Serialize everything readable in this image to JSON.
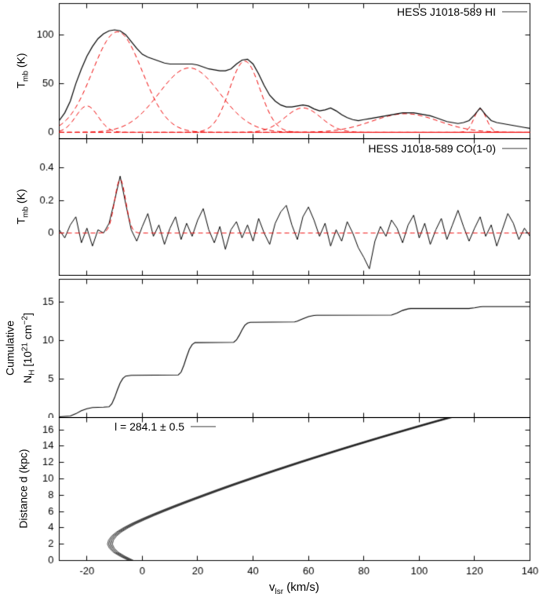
{
  "x_axis": {
    "title_main": "v",
    "title_sub": "lsr",
    "title_rest": " (km/s)",
    "range": [
      -30,
      140
    ],
    "ticks": [
      -20,
      0,
      20,
      40,
      60,
      80,
      100,
      120,
      140
    ]
  },
  "panels": {
    "hi": {
      "legend": "HESS J1018-589 HI",
      "ylabel": {
        "main": "T",
        "sub": "mb",
        "rest": " (K)"
      }
    },
    "co": {
      "legend": "HESS J1018-589 CO(1-0)",
      "ylabel": {
        "main": "T",
        "sub": "mb",
        "rest": " (K)"
      }
    },
    "nh": {
      "ylabel_line1": "Cumulative",
      "ylabel_line2": {
        "pre": "N",
        "sub": "H",
        "mid": " [10",
        "sup1": "21",
        "mid2": " cm",
        "sup2": "−2",
        "post": "]"
      }
    },
    "dist": {
      "legend": "l = 284.1 ± 0.5",
      "ylabel": "Distance d (kpc)"
    }
  },
  "colors": {
    "spectrum_line": "#000000",
    "fit_dashed": "#ee0000",
    "legend_sample": "#a0a0a0"
  },
  "chart_data": [
    {
      "type": "line",
      "title": "HESS J1018-589 HI",
      "ylabel": "T_mb (K)",
      "xlabel": "v_lsr (km/s)",
      "xlim": [
        -30,
        140
      ],
      "ylim": [
        -6.5,
        132
      ],
      "yticks": [
        0,
        50,
        100
      ],
      "observed_x_start": -30,
      "observed_x_step": 2,
      "observed_y": [
        12,
        20,
        32,
        50,
        65,
        78,
        88,
        96,
        101,
        104,
        105,
        104,
        100,
        93,
        86,
        80,
        77,
        75,
        73,
        71,
        70,
        70,
        70,
        70,
        70,
        69,
        67,
        65,
        64,
        63,
        63,
        65,
        70,
        74,
        75,
        70,
        60,
        48,
        38,
        32,
        28,
        26,
        26,
        27,
        28,
        27,
        24,
        22,
        23,
        25,
        22,
        18,
        15,
        13,
        12,
        13,
        14,
        15,
        16,
        17,
        18,
        19,
        20,
        20,
        20,
        19,
        18,
        17,
        15,
        13,
        11,
        10,
        9,
        10,
        12,
        18,
        25,
        18,
        12,
        10,
        9,
        8,
        7,
        6,
        5,
        4
      ],
      "gaussian_components": [
        [
          -20,
          27,
          4
        ],
        [
          -9,
          103,
          9
        ],
        [
          17,
          66,
          11
        ],
        [
          37,
          73,
          5.5
        ],
        [
          58,
          25,
          6.5
        ],
        [
          95,
          19,
          12
        ],
        [
          122,
          24,
          2.2
        ]
      ]
    },
    {
      "type": "line",
      "title": "HESS J1018-589 CO(1-0)",
      "ylabel": "T_mb (K)",
      "xlabel": "v_lsr (km/s)",
      "xlim": [
        -30,
        140
      ],
      "ylim": [
        -0.26,
        0.58
      ],
      "yticks": [
        0,
        0.2,
        0.4
      ],
      "observed_x_start": -30,
      "observed_x_step": 2,
      "observed_y": [
        0.02,
        -0.03,
        0.05,
        0.1,
        -0.06,
        0.03,
        -0.08,
        0.02,
        0.0,
        0.06,
        0.2,
        0.35,
        0.18,
        0.02,
        -0.05,
        0.04,
        0.12,
        -0.02,
        0.05,
        -0.07,
        0.03,
        0.1,
        -0.04,
        0.06,
        -0.02,
        0.08,
        0.15,
        0.02,
        -0.06,
        0.04,
        -0.1,
        0.02,
        0.07,
        -0.03,
        0.05,
        -0.05,
        0.09,
        0.0,
        -0.07,
        0.06,
        0.13,
        0.17,
        0.05,
        -0.04,
        0.1,
        0.16,
        0.08,
        -0.02,
        0.06,
        -0.08,
        0.02,
        -0.05,
        0.07,
        0.0,
        -0.09,
        -0.15,
        -0.22,
        -0.05,
        0.04,
        -0.02,
        0.08,
        0.03,
        -0.06,
        0.05,
        0.11,
        -0.03,
        0.06,
        -0.07,
        0.02,
        0.09,
        -0.04,
        0.05,
        0.14,
        0.04,
        -0.05,
        0.03,
        0.1,
        -0.02,
        0.05,
        -0.08,
        0.02,
        0.12,
        0.06,
        -0.04,
        0.03,
        -0.02
      ],
      "fit_gaussian": [
        -8,
        0.33,
        2
      ],
      "fit_baseline": 0
    },
    {
      "type": "line",
      "ylabel": "Cumulative N_H [10^21 cm^-2]",
      "xlabel": "v_lsr (km/s)",
      "xlim": [
        -30,
        140
      ],
      "ylim": [
        0,
        18
      ],
      "yticks": [
        0,
        5,
        10,
        15
      ],
      "x": [
        -30,
        -26,
        -24,
        -22,
        -20,
        -18,
        -14,
        -12,
        -11,
        -10,
        -9,
        -8,
        -7,
        -6,
        -4,
        13,
        14,
        15,
        16,
        17,
        18,
        19,
        33,
        34,
        35,
        36,
        37,
        38,
        39,
        55,
        56,
        58,
        60,
        62,
        63,
        90,
        92,
        94,
        96,
        97,
        118,
        120,
        122,
        123,
        140
      ],
      "y": [
        0.1,
        0.2,
        0.5,
        0.9,
        1.15,
        1.3,
        1.35,
        1.4,
        1.8,
        2.6,
        3.6,
        4.5,
        5.1,
        5.4,
        5.5,
        5.55,
        5.9,
        6.8,
        7.9,
        8.9,
        9.5,
        9.75,
        9.8,
        10.1,
        10.7,
        11.4,
        12.0,
        12.3,
        12.4,
        12.45,
        12.55,
        12.85,
        13.15,
        13.3,
        13.32,
        13.35,
        13.6,
        13.95,
        14.15,
        14.2,
        14.2,
        14.3,
        14.42,
        14.45,
        14.45
      ]
    },
    {
      "type": "line",
      "title": "l = 284.1 ± 0.5",
      "ylabel": "Distance d (kpc)",
      "xlabel": "v_lsr (km/s)",
      "xlim": [
        -30,
        140
      ],
      "ylim": [
        0,
        17.5
      ],
      "yticks": [
        0,
        2,
        4,
        6,
        8,
        10,
        12,
        14,
        16
      ],
      "distance_kpc": [
        0,
        0.5,
        1,
        1.5,
        2,
        2.5,
        3,
        3.5,
        4,
        4.5,
        5,
        5.5,
        6,
        6.5,
        7,
        7.5,
        8,
        8.5,
        9,
        9.5,
        10,
        10.5,
        11,
        11.5,
        12,
        12.5,
        13,
        13.5,
        14,
        14.5,
        15,
        15.5,
        16,
        16.5,
        17,
        17.5
      ],
      "velocity_kms": [
        -4,
        -7,
        -9.5,
        -11,
        -11.7,
        -11.3,
        -10.2,
        -8.4,
        -6,
        -3.2,
        0,
        3.4,
        7,
        10.7,
        14.5,
        18.4,
        22.4,
        26.4,
        30.5,
        34.7,
        39,
        43.3,
        47.7,
        52.2,
        56.7,
        61.3,
        66,
        70.7,
        75.5,
        80.4,
        85.3,
        90.3,
        95.4,
        100.5,
        105.7,
        111
      ],
      "band_offsets_kms": [
        -0.9,
        -0.45,
        0,
        0.45,
        0.9
      ]
    }
  ]
}
